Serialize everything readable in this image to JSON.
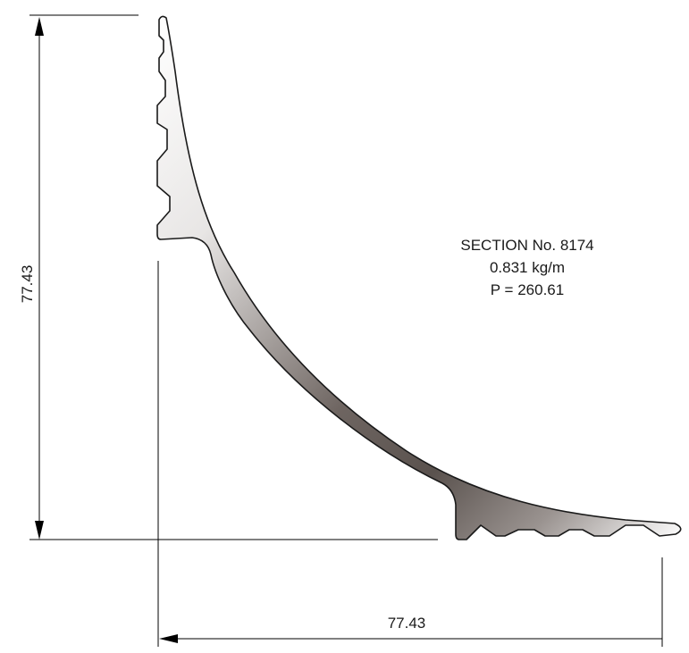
{
  "dimensions": {
    "vertical_label": "77.43",
    "horizontal_label": "77.43"
  },
  "section": {
    "title": "SECTION No. 8174",
    "weight": "0.831 kg/m",
    "perimeter": "P = 260.61"
  },
  "colors": {
    "line": "#000000",
    "profile_outline": "#1a1a1a",
    "gradient_light": "#ffffff",
    "gradient_dark": "#5a524e"
  }
}
